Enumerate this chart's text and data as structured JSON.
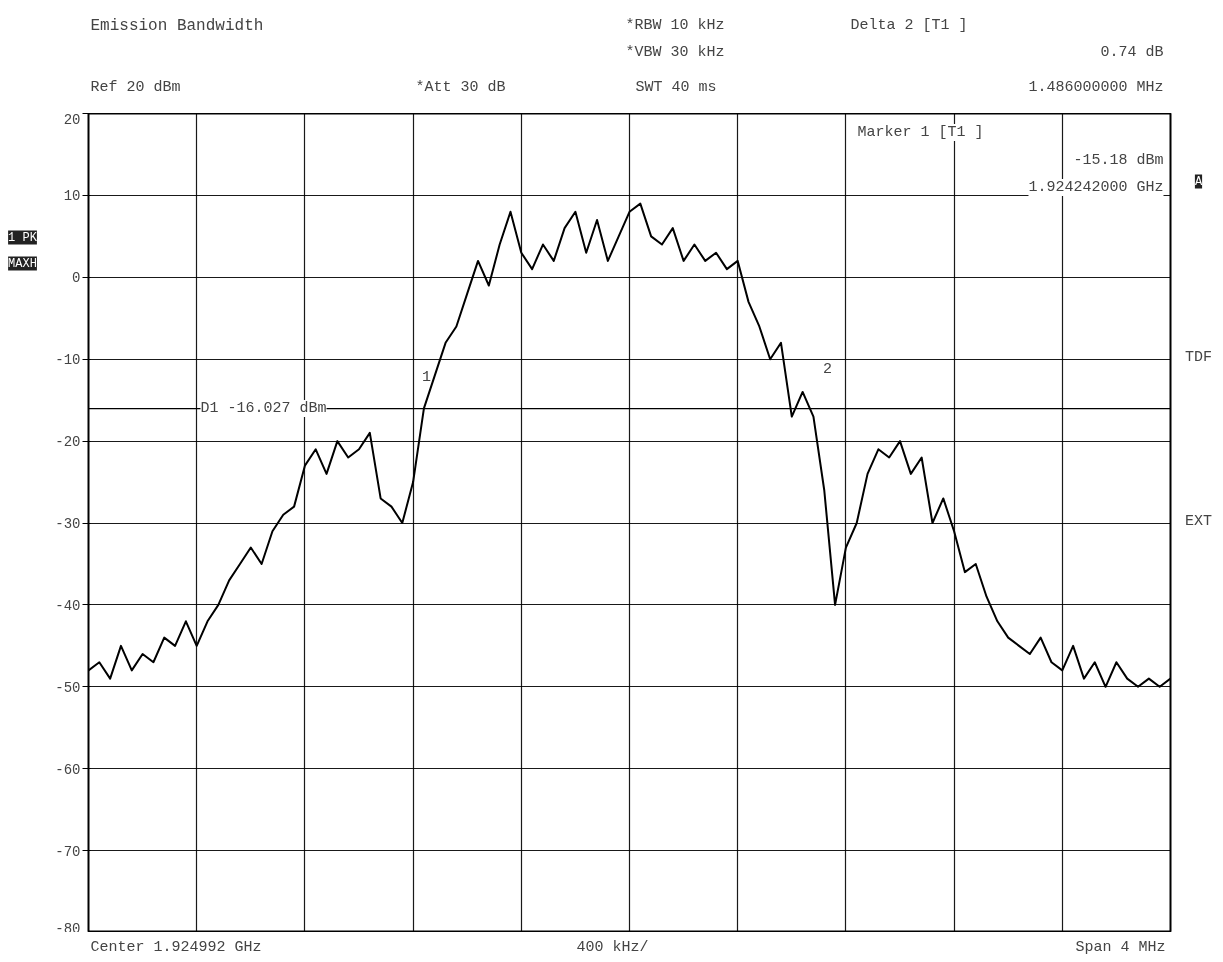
{
  "chart_data": {
    "type": "line",
    "title": "Emission Bandwidth",
    "categories": [
      null,
      null,
      null,
      null,
      null,
      null,
      null,
      null,
      null,
      null,
      null,
      null,
      null,
      null,
      null,
      null,
      null,
      null,
      null,
      null,
      null,
      null,
      null,
      null,
      null,
      null,
      null,
      null,
      null,
      null,
      null,
      null,
      null,
      null,
      null,
      null,
      null,
      null,
      null,
      null,
      null,
      null,
      null,
      null,
      null,
      null,
      null,
      null,
      null,
      null,
      null,
      null,
      null,
      null,
      null,
      null,
      null,
      null,
      null,
      null,
      null,
      null,
      null,
      null,
      null,
      null,
      null,
      null,
      null,
      null,
      null,
      null,
      null,
      null,
      null,
      null,
      null,
      null,
      null,
      null,
      null,
      null,
      null,
      null,
      null,
      null,
      null,
      null,
      null,
      null,
      null,
      null,
      null,
      null,
      null,
      null,
      null,
      null,
      null,
      null,
      null
    ],
    "values": [
      -48,
      -47,
      -49,
      -45,
      -48,
      -46,
      -47,
      -44,
      -45,
      -42,
      -45,
      -42,
      -40,
      -37,
      -35,
      -33,
      -35,
      -31,
      -29,
      -28,
      -23,
      -21,
      -24,
      -20,
      -22,
      -21,
      -19,
      -27,
      -28,
      -30,
      -25,
      -16,
      -12,
      -8,
      -6,
      -2,
      2,
      -1,
      4,
      8,
      3,
      1,
      4,
      2,
      6,
      8,
      3,
      7,
      2,
      5,
      8,
      9,
      5,
      4,
      6,
      2,
      4,
      2,
      3,
      1,
      2,
      -3,
      -6,
      -10,
      -8,
      -17,
      -14,
      -17,
      -26,
      -40,
      -33,
      -30,
      -24,
      -21,
      -22,
      -20,
      -24,
      -22,
      -30,
      -27,
      -31,
      -36,
      -35,
      -39,
      -42,
      -44,
      -45,
      -46,
      -44,
      -47,
      -48,
      -45,
      -49,
      -47,
      -50,
      -47,
      -49,
      -50,
      -49,
      -50,
      -49
    ],
    "color": "#000000",
    "ylim": [
      -80,
      20
    ],
    "yticks": [
      -80,
      -70,
      -60,
      -50,
      -40,
      -30,
      -20,
      -10,
      0,
      10,
      20
    ],
    "grid": true,
    "tick_labels": "y",
    "ref_lines": [
      {
        "axis": "y",
        "value": -16.027,
        "label": "D1 -16.027 dBm"
      }
    ],
    "annotations": [
      "*RBW 10 kHz",
      "*VBW 30 kHz",
      "SWT 40 ms",
      "Delta 2 [T1 ]",
      "0.74 dB",
      "1.486000000 MHz",
      "Ref 20 dBm",
      "*Att 30 dB",
      "Marker 1 [T1 ]",
      "-15.18 dBm",
      "1.924242000 GHz",
      "A",
      "1 PK",
      "MAXH",
      "TDF",
      "EXT",
      "Center 1.924992 GHz",
      "400 kHz/",
      "Span 4 MHz",
      "1",
      "2"
    ]
  }
}
